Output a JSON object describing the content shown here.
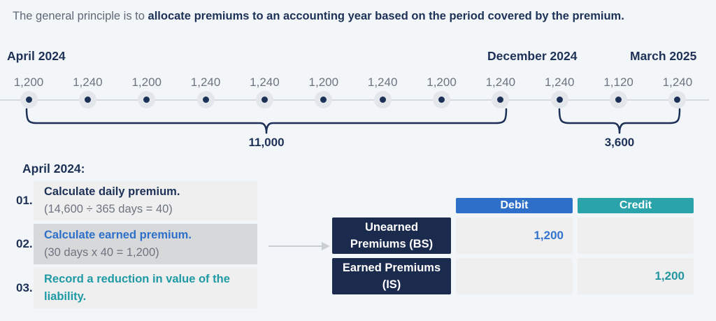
{
  "header": {
    "intro_regular": "The general principle is to ",
    "intro_bold": "allocate premiums to an accounting year based on the period covered by the premium."
  },
  "timeline": {
    "month_labels": [
      "April 2024",
      "December 2024",
      "March 2025"
    ],
    "values": [
      "1,200",
      "1,240",
      "1,200",
      "1,240",
      "1,240",
      "1,200",
      "1,240",
      "1,200",
      "1,240",
      "1,240",
      "1,120",
      "1,240"
    ],
    "brackets": [
      {
        "label": "11,000",
        "covers": "April 2024 to December 2024"
      },
      {
        "label": "3,600",
        "covers": "January 2025 to March 2025"
      }
    ]
  },
  "steps": {
    "heading": "April 2024:",
    "items": [
      {
        "number": "01.",
        "title": "Calculate daily premium.",
        "detail": "(14,600 ÷ 365 days = 40)"
      },
      {
        "number": "02.",
        "title": "Calculate earned premium.",
        "detail": "(30 days x 40 = 1,200)"
      },
      {
        "number": "03.",
        "title": "Record a reduction in value of the liability.",
        "detail": ""
      }
    ]
  },
  "table": {
    "headers": {
      "debit": "Debit",
      "credit": "Credit"
    },
    "rows": [
      {
        "label_line1": "Unearned",
        "label_line2": "Premiums (BS)",
        "debit": "1,200",
        "credit": ""
      },
      {
        "label_line1": "Earned Premiums",
        "label_line2": "(IS)",
        "debit": "",
        "credit": "1,200"
      }
    ]
  },
  "colors": {
    "navy": "#1d3157",
    "accent_blue": "#2e70c9",
    "accent_teal": "#2aa3ab",
    "background": "#f3f6f9"
  }
}
